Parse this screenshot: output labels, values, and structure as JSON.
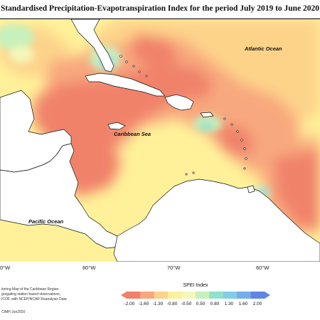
{
  "title": "Standardised Precipitation-Evapotranspiration Index for the period July 2019 to June 2020",
  "ocean_labels": {
    "atlantic": "Atlantic Ocean",
    "caribbean": "Caribbean Sea",
    "pacific": "Pacific Ocean"
  },
  "longitude_labels": [
    "0°W",
    "80°W",
    "70°W",
    "60°W"
  ],
  "credits": [
    "itoring Map of the Caribbean Region.",
    "gregating station based observations,",
    "ICOF, with NCEP/NCAR Reanalysis Data",
    "CIMH Jun2020"
  ],
  "legend": {
    "title": "SPEI Index",
    "ticks": [
      "-2.00",
      "-1.60",
      "-1.30",
      "-0.80",
      "-0.50",
      "0.50",
      "0.80",
      "1.30",
      "1.60",
      "2.00"
    ],
    "colors": [
      "#f0826a",
      "#f8a87e",
      "#fdd38a",
      "#fff19a",
      "#f4f7b8",
      "#c8f0bc",
      "#8fe2cc",
      "#82cde8",
      "#74aee8",
      "#5f86e2"
    ]
  }
}
